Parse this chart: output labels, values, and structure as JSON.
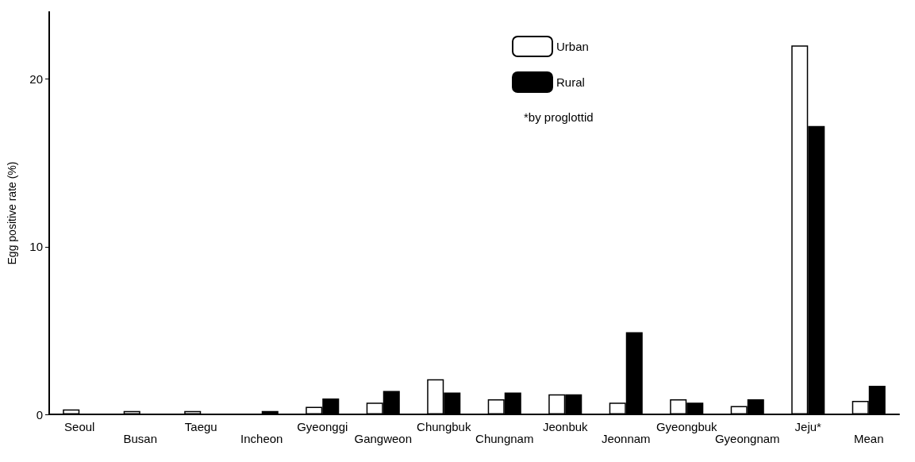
{
  "chart_data": {
    "type": "bar",
    "ylabel": "Egg positive rate (%)",
    "categories": [
      "Seoul",
      "Busan",
      "Taegu",
      "Incheon",
      "Gyeonggi",
      "Gangweon",
      "Chungbuk",
      "Chungnam",
      "Jeonbuk",
      "Jeonnam",
      "Gyeongbuk",
      "Gyeongnam",
      "Jeju*",
      "Mean"
    ],
    "series": [
      {
        "name": "Urban",
        "color": "#ffffff",
        "values": [
          0.3,
          0.2,
          0.2,
          null,
          0.45,
          0.7,
          2.1,
          0.9,
          1.2,
          0.7,
          0.9,
          0.5,
          22.0,
          0.8
        ]
      },
      {
        "name": "Rural",
        "color": "#000000",
        "values": [
          null,
          null,
          null,
          0.2,
          0.95,
          1.4,
          1.3,
          1.3,
          1.2,
          4.9,
          0.7,
          0.9,
          17.2,
          1.7
        ]
      }
    ],
    "ylim": [
      0,
      24
    ],
    "yticks": [
      0,
      10,
      20
    ],
    "grid": false,
    "legend": "top",
    "annotations": [
      "*by proglottid"
    ]
  }
}
